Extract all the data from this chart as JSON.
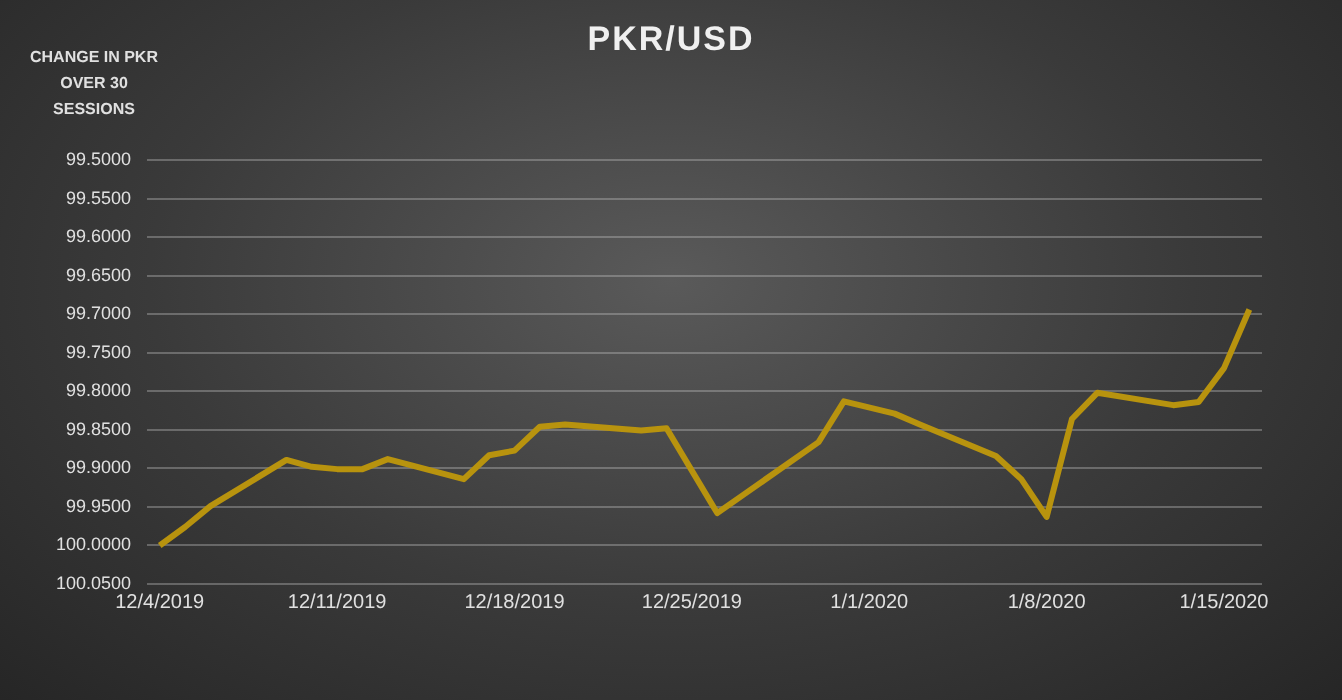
{
  "chart_data": {
    "type": "line",
    "title": "PKR/USD",
    "ylabel": "CHANGE IN PKR OVER 30 SESSIONS",
    "x": [
      "2019-12-04",
      "2019-12-05",
      "2019-12-06",
      "2019-12-09",
      "2019-12-10",
      "2019-12-11",
      "2019-12-12",
      "2019-12-13",
      "2019-12-16",
      "2019-12-17",
      "2019-12-18",
      "2019-12-19",
      "2019-12-20",
      "2019-12-23",
      "2019-12-24",
      "2019-12-26",
      "2019-12-27",
      "2019-12-30",
      "2019-12-31",
      "2020-01-02",
      "2020-01-03",
      "2020-01-06",
      "2020-01-07",
      "2020-01-08",
      "2020-01-09",
      "2020-01-10",
      "2020-01-13",
      "2020-01-14",
      "2020-01-15",
      "2020-01-16"
    ],
    "series": [
      {
        "color": "#b8930e",
        "values": [
          100.0,
          99.976,
          99.949,
          99.889,
          99.898,
          99.901,
          99.901,
          99.888,
          99.914,
          99.883,
          99.877,
          99.846,
          99.843,
          99.851,
          99.848,
          99.958,
          99.935,
          99.866,
          99.813,
          99.829,
          99.843,
          99.884,
          99.914,
          99.963,
          99.836,
          99.802,
          99.818,
          99.814,
          99.77,
          99.694
        ]
      }
    ],
    "ylim": [
      100.05,
      99.5
    ],
    "yticks": [
      {
        "value": 99.5,
        "label": "99.5000"
      },
      {
        "value": 99.55,
        "label": "99.5500"
      },
      {
        "value": 99.6,
        "label": "99.6000"
      },
      {
        "value": 99.65,
        "label": "99.6500"
      },
      {
        "value": 99.7,
        "label": "99.7000"
      },
      {
        "value": 99.75,
        "label": "99.7500"
      },
      {
        "value": 99.8,
        "label": "99.8000"
      },
      {
        "value": 99.85,
        "label": "99.8500"
      },
      {
        "value": 99.9,
        "label": "99.9000"
      },
      {
        "value": 99.95,
        "label": "99.9500"
      },
      {
        "value": 100.0,
        "label": "100.0000"
      },
      {
        "value": 100.05,
        "label": "100.0500"
      }
    ],
    "xlim": [
      "2019-12-03T12:00",
      "2020-01-16T12:00"
    ],
    "xticks": [
      {
        "value": "2019-12-04",
        "label": "12/4/2019"
      },
      {
        "value": "2019-12-11",
        "label": "12/11/2019"
      },
      {
        "value": "2019-12-18",
        "label": "12/18/2019"
      },
      {
        "value": "2019-12-25",
        "label": "12/25/2019"
      },
      {
        "value": "2020-01-01",
        "label": "1/1/2020"
      },
      {
        "value": "2020-01-08",
        "label": "1/8/2020"
      },
      {
        "value": "2020-01-15",
        "label": "1/15/2020"
      }
    ],
    "grid": "y",
    "legend": false,
    "marker": "none",
    "line_style": "solid"
  }
}
